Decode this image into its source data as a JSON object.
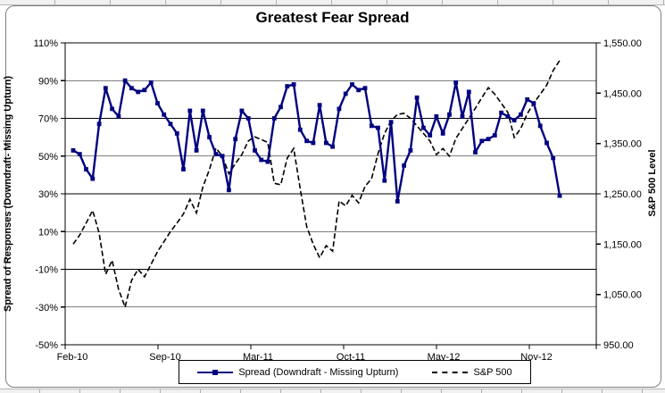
{
  "chart": {
    "title": "Greatest Fear Spread",
    "left_axis": {
      "title": "Spread of Responses (Downdraft- Missing Upturn)",
      "tick_labels": [
        "110%",
        "90%",
        "70%",
        "50%",
        "30%",
        "10%",
        "-10%",
        "-30%",
        "-50%"
      ],
      "min": -50,
      "max": 110
    },
    "right_axis": {
      "title": "S&P 500 Level",
      "tick_labels": [
        "1,550.00",
        "1,450.00",
        "1,350.00",
        "1,250.00",
        "1,150.00",
        "1,050.00",
        "950.00"
      ],
      "min": 950,
      "max": 1550
    },
    "x_axis": {
      "tick_labels": [
        "Feb-10",
        "Sep-10",
        "Mar-11",
        "Oct-11",
        "May-12",
        "Nov-12"
      ]
    },
    "legend": {
      "items": [
        {
          "label": "Spread (Downdraft - Missing Upturn)",
          "style": "solid-line-square-marker",
          "color": "#000080"
        },
        {
          "label": "S&P 500",
          "style": "dashed-line",
          "color": "#000000"
        }
      ]
    }
  },
  "chart_data": {
    "type": "line",
    "title": "Greatest Fear Spread",
    "x_tick_labels": [
      "Feb-10",
      "Sep-10",
      "Mar-11",
      "Oct-11",
      "May-12",
      "Nov-12"
    ],
    "left_axis_range": [
      -50,
      110
    ],
    "right_axis_range": [
      950,
      1550
    ],
    "grid": "horizontal",
    "legend_position": "bottom",
    "series": [
      {
        "name": "Spread (Downdraft - Missing Upturn)",
        "axis": "left",
        "unit": "percent",
        "color": "#000080",
        "line_style": "solid",
        "marker": "square",
        "values": [
          53,
          51,
          43,
          38,
          67,
          86,
          75,
          71,
          90,
          86,
          84,
          85,
          89,
          78,
          72,
          67,
          62,
          43,
          74,
          53,
          74,
          60,
          51,
          50,
          32,
          59,
          74,
          70,
          53,
          48,
          47,
          70,
          76,
          87,
          88,
          64,
          58,
          57,
          77,
          57,
          55,
          75,
          83,
          88,
          85,
          86,
          66,
          65,
          37,
          68,
          26,
          45,
          53,
          81,
          65,
          61,
          71,
          62,
          72,
          89,
          71,
          84,
          52,
          58,
          59,
          61,
          73,
          71,
          69,
          72,
          80,
          78,
          66,
          57,
          49,
          29
        ]
      },
      {
        "name": "S&P 500",
        "axis": "right",
        "unit": "index-level",
        "color": "#000000",
        "line_style": "dashed",
        "marker": "none",
        "values": [
          1150,
          1168,
          1192,
          1217,
          1172,
          1090,
          1118,
          1060,
          1025,
          1078,
          1100,
          1085,
          1110,
          1135,
          1155,
          1175,
          1192,
          1210,
          1239,
          1212,
          1264,
          1298,
          1341,
          1325,
          1290,
          1310,
          1328,
          1355,
          1363,
          1358,
          1352,
          1271,
          1268,
          1321,
          1340,
          1260,
          1185,
          1150,
          1123,
          1147,
          1136,
          1236,
          1226,
          1247,
          1232,
          1265,
          1280,
          1330,
          1370,
          1395,
          1408,
          1410,
          1400,
          1385,
          1370,
          1355,
          1328,
          1340,
          1325,
          1360,
          1380,
          1400,
          1420,
          1441,
          1461,
          1448,
          1430,
          1412,
          1362,
          1380,
          1409,
          1430,
          1448,
          1466,
          1495,
          1515
        ]
      }
    ]
  }
}
